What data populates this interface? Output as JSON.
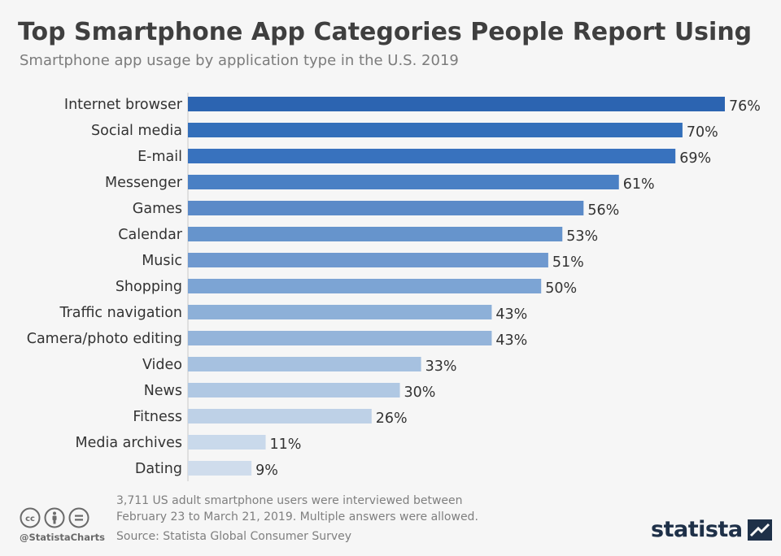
{
  "header": {
    "title": "Top Smartphone App Categories People Report Using",
    "subtitle": "Smartphone app usage by application type in the U.S. 2019"
  },
  "chart_data": {
    "type": "bar",
    "orientation": "horizontal",
    "title": "Top Smartphone App Categories People Report Using",
    "subtitle": "Smartphone app usage by application type in the U.S. 2019",
    "xlabel": "",
    "ylabel": "",
    "unit": "%",
    "xlim": [
      0,
      76
    ],
    "grid": false,
    "categories": [
      "Internet browser",
      "Social media",
      "E-mail",
      "Messenger",
      "Games",
      "Calendar",
      "Music",
      "Shopping",
      "Traffic navigation",
      "Camera/photo editing",
      "Video",
      "News",
      "Fitness",
      "Media archives",
      "Dating"
    ],
    "values": [
      76,
      70,
      69,
      61,
      56,
      53,
      51,
      50,
      43,
      43,
      33,
      30,
      26,
      11,
      9
    ],
    "labels": [
      "76%",
      "70%",
      "69%",
      "61%",
      "56%",
      "53%",
      "51%",
      "50%",
      "43%",
      "43%",
      "33%",
      "30%",
      "26%",
      "11%",
      "9%"
    ],
    "colors": [
      "#2c64b1",
      "#336fba",
      "#3872be",
      "#4a80c4",
      "#5b8ac8",
      "#6694cc",
      "#6f99cf",
      "#7ca4d4",
      "#8db0d8",
      "#94b4da",
      "#a6c1e0",
      "#b0c8e3",
      "#bed1e7",
      "#c9d9eb",
      "#cfdcec"
    ]
  },
  "footer": {
    "note_line1": "3,711 US adult smartphone users were interviewed between",
    "note_line2": "February 23 to March 21, 2019. Multiple answers were allowed.",
    "source": "Source: Statista Global Consumer Survey",
    "handle": "@StatistaCharts",
    "brand": "statista"
  }
}
